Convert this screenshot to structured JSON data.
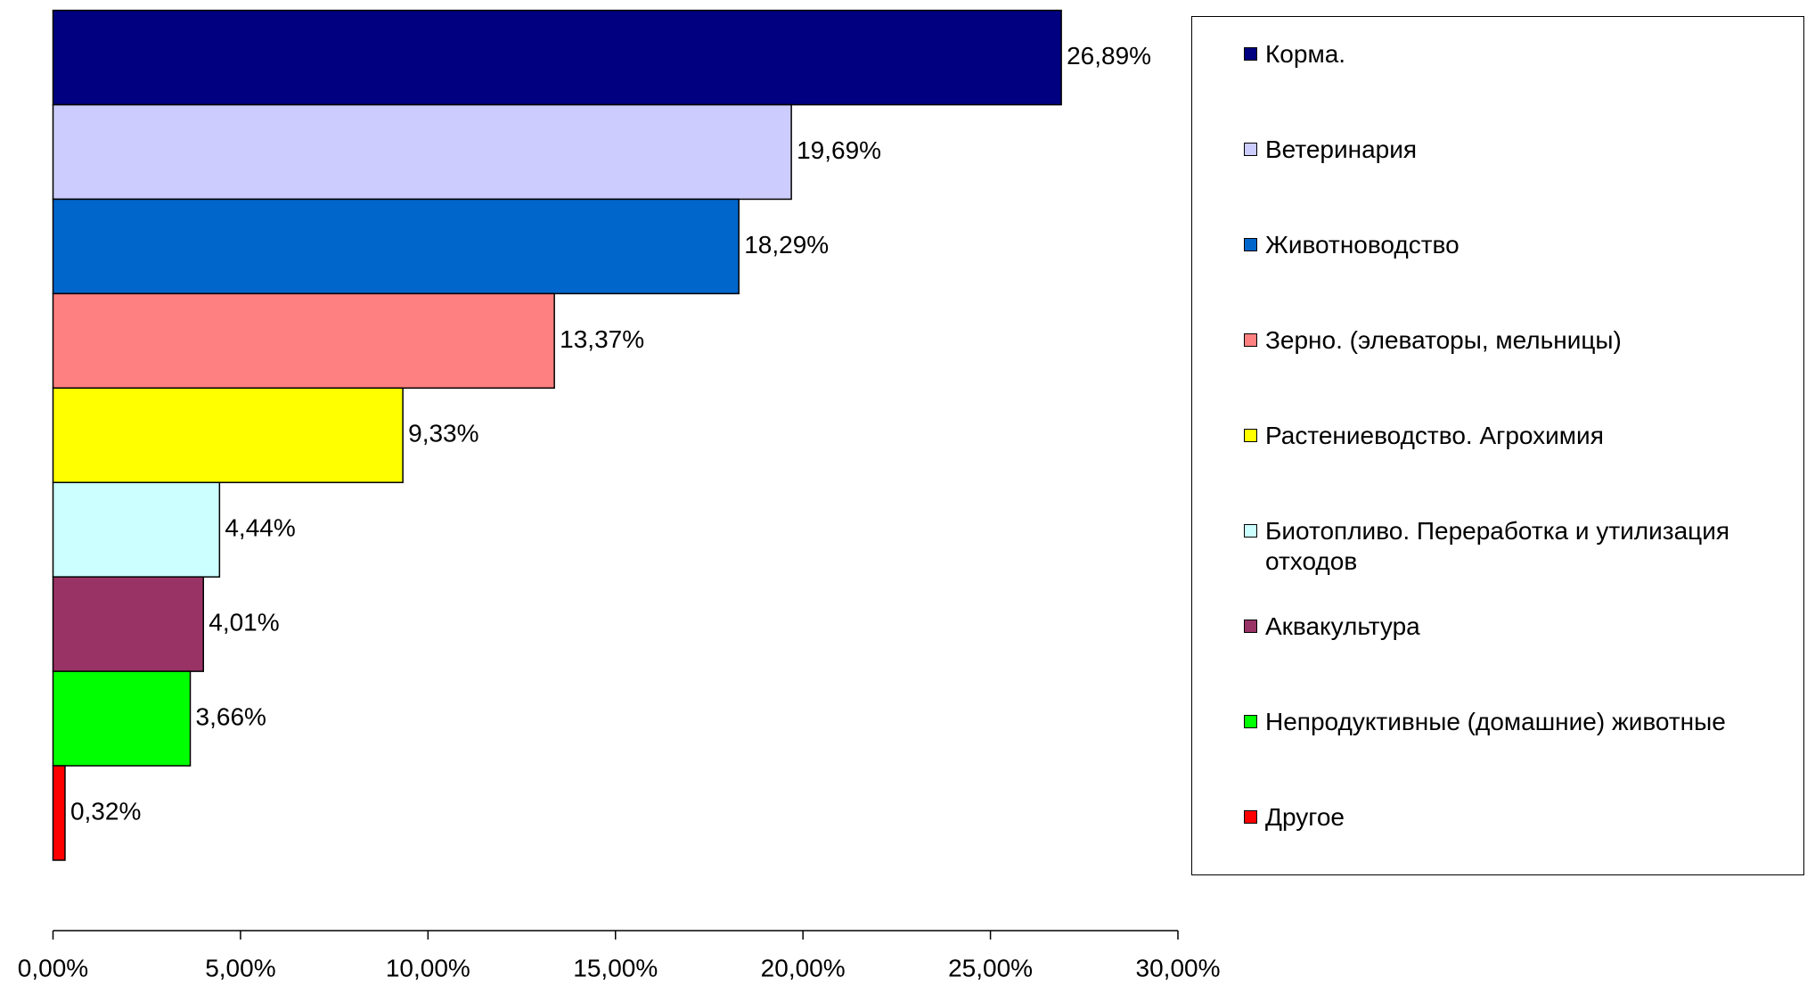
{
  "chart_data": {
    "type": "bar",
    "orientation": "horizontal",
    "categories": [
      "Корма.",
      "Ветеринария",
      "Животноводство",
      "Зерно. (элеваторы, мельницы)",
      "Растениеводство. Агрохимия",
      "Биотопливо. Переработка и утилизация отходов",
      "Аквакультура",
      "Непродуктивные (домашние) животные",
      "Другое"
    ],
    "values": [
      26.89,
      19.69,
      18.29,
      13.37,
      9.33,
      4.44,
      4.01,
      3.66,
      0.32
    ],
    "value_labels": [
      "26,89%",
      "19,69%",
      "18,29%",
      "13,37%",
      "9,33%",
      "4,44%",
      "4,01%",
      "3,66%",
      "0,32%"
    ],
    "colors": [
      "#000080",
      "#ccccff",
      "#0066cc",
      "#ff8080",
      "#ffff00",
      "#ccffff",
      "#993366",
      "#00ff00",
      "#ff0000"
    ],
    "xlim": [
      0,
      30
    ],
    "xticks": [
      {
        "value": 0,
        "label": "0,00%"
      },
      {
        "value": 5,
        "label": "5,00%"
      },
      {
        "value": 10,
        "label": "10,00%"
      },
      {
        "value": 15,
        "label": "15,00%"
      },
      {
        "value": 20,
        "label": "20,00%"
      },
      {
        "value": 25,
        "label": "25,00%"
      },
      {
        "value": 30,
        "label": "30,00%"
      }
    ],
    "grid": false,
    "legend": "right"
  }
}
